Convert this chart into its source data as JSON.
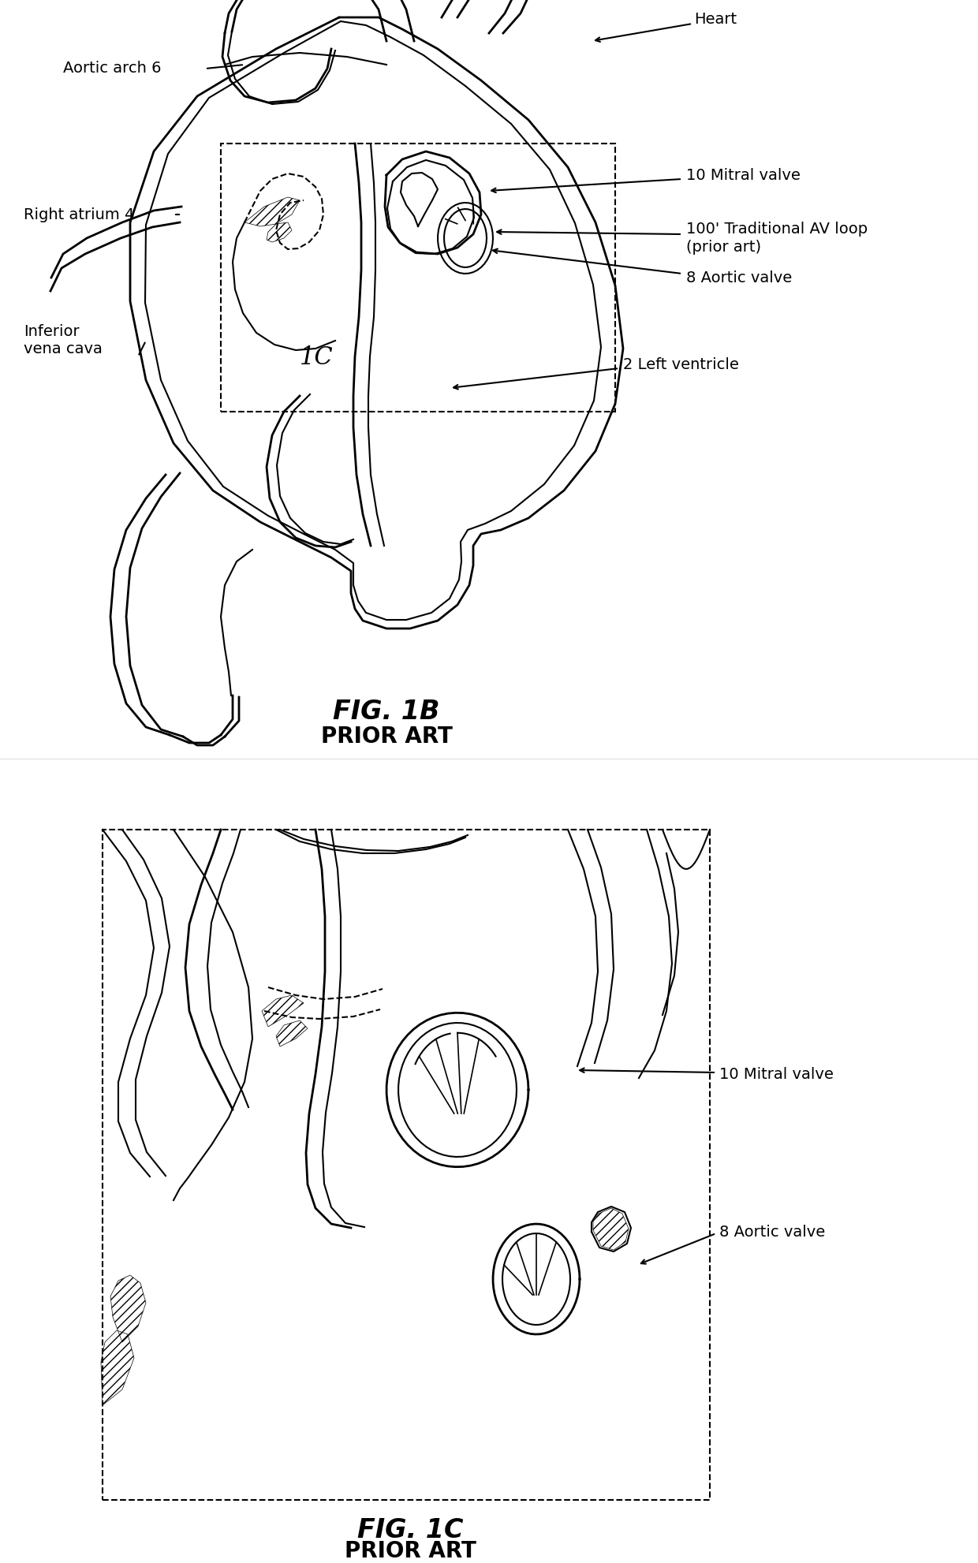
{
  "fig_width": 12.4,
  "fig_height": 19.82,
  "bg_color": "#ffffff",
  "line_color": "#000000",
  "line_width": 1.5,
  "fig1b_label": "FIG. 1B",
  "fig1b_sublabel": "PRIOR ART",
  "fig1c_label": "FIG. 1C",
  "fig1c_sublabel": "PRIOR ART",
  "labels_1b": {
    "heart": "Heart",
    "aortic_arch": "Aortic arch 6",
    "right_atrium": "Right atrium 4",
    "inferior_vena_cava": "Inferior\nvena cava",
    "mitral_valve": "10 Mitral valve",
    "av_loop": "100' Traditional AV loop\n(prior art)",
    "aortic_valve": "8 Aortic valve",
    "left_ventricle": "2 Left ventricle",
    "fig_ref": "1C"
  },
  "labels_1c": {
    "mitral_valve": "10 Mitral valve",
    "aortic_valve": "8 Aortic valve"
  }
}
